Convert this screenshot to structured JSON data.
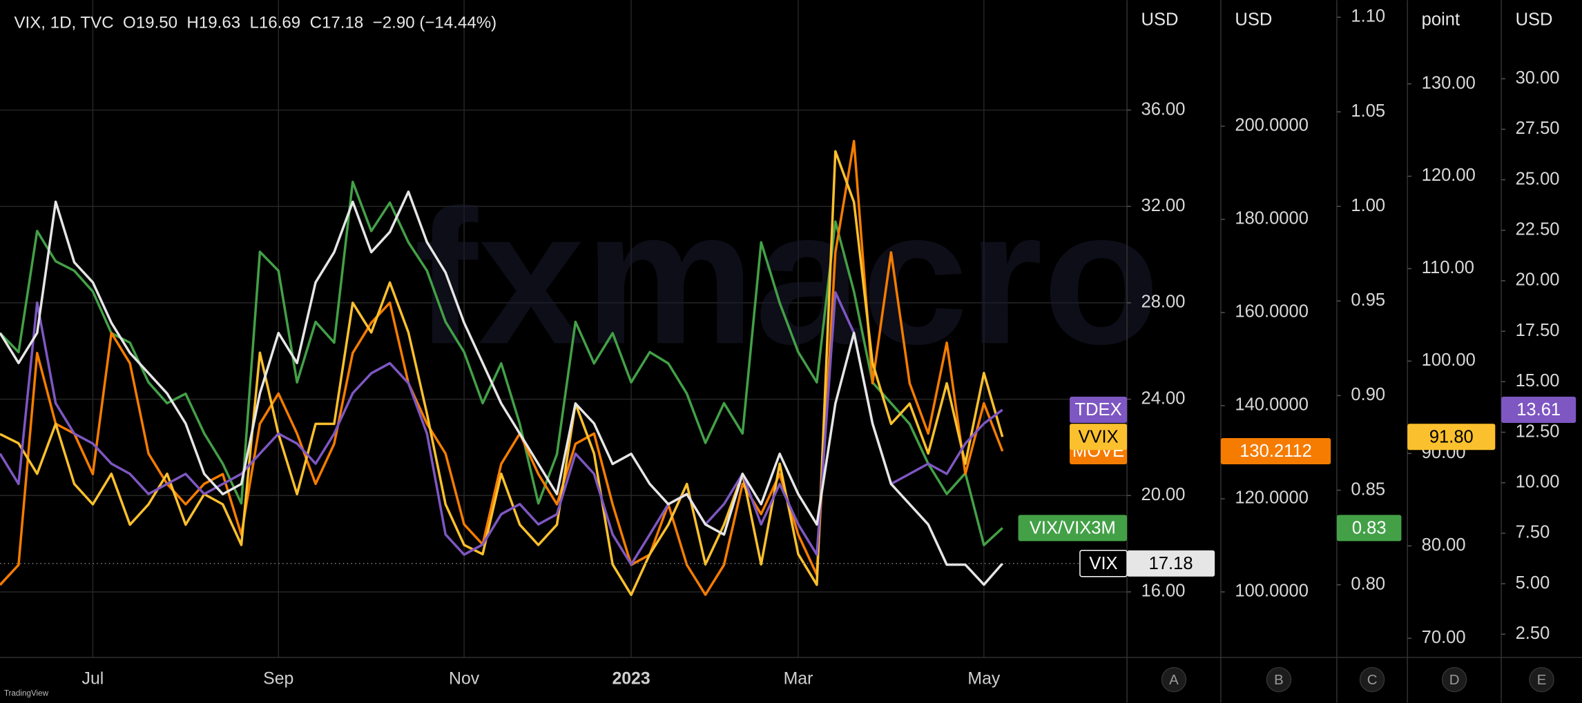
{
  "chart_data": {
    "type": "line",
    "title": "VIX, 1D, TVC  O19.50  H19.63  L16.69  C17.18  −2.90 (−14.44%)",
    "watermark": "fxmacro",
    "brand": "TradingView",
    "grid": true,
    "categories": [
      null,
      null,
      null,
      null,
      null,
      "Jul",
      null,
      null,
      null,
      null,
      null,
      null,
      null,
      null,
      null,
      "Sep",
      null,
      null,
      null,
      null,
      null,
      null,
      null,
      null,
      null,
      "Nov",
      null,
      null,
      null,
      null,
      null,
      null,
      null,
      null,
      "2023",
      null,
      null,
      null,
      null,
      null,
      null,
      null,
      null,
      "Mar",
      null,
      null,
      null,
      null,
      null,
      null,
      null,
      null,
      null,
      "May",
      null
    ],
    "axes": [
      {
        "id": "A",
        "unit": "USD",
        "ylim": [
          13.28,
          40.56
        ],
        "yticks": [
          {
            "value": 16,
            "label": "16.00"
          },
          {
            "value": 20,
            "label": "20.00"
          },
          {
            "value": 24,
            "label": "24.00"
          },
          {
            "value": 28,
            "label": "28.00"
          },
          {
            "value": 32,
            "label": "32.00"
          },
          {
            "value": 36,
            "label": "36.00"
          }
        ]
      },
      {
        "id": "B",
        "unit": "USD",
        "ylim": [
          85.93,
          227.06
        ],
        "yticks": [
          {
            "value": 100,
            "label": "100.0000"
          },
          {
            "value": 120,
            "label": "120.0000"
          },
          {
            "value": 140,
            "label": "140.0000"
          },
          {
            "value": 160,
            "label": "160.0000"
          },
          {
            "value": 180,
            "label": "180.0000"
          },
          {
            "value": 200,
            "label": "200.0000"
          }
        ]
      },
      {
        "id": "C",
        "ylim": [
          0.7616,
          1.109
        ],
        "yticks": [
          {
            "value": 0.8,
            "label": "0.80"
          },
          0.85,
          {
            "value": 0.9,
            "label": "0.90"
          },
          0.95,
          {
            "value": 1,
            "label": "1.00"
          },
          1.05,
          {
            "value": 1.1,
            "label": "1.10"
          }
        ]
      },
      {
        "id": "D",
        "unit": "point",
        "ylim": [
          67.93,
          139.05
        ],
        "yticks": [
          {
            "value": 70,
            "label": "70.00"
          },
          {
            "value": 80,
            "label": "80.00"
          },
          {
            "value": 90,
            "label": "90.00"
          },
          {
            "value": 100,
            "label": "100.00"
          },
          {
            "value": 110,
            "label": "110.00"
          },
          {
            "value": 120,
            "label": "120.00"
          },
          {
            "value": 130,
            "label": "130.00"
          }
        ]
      },
      {
        "id": "E",
        "unit": "USD",
        "ylim": [
          1.35,
          33.89
        ],
        "yticks": [
          {
            "value": 2.5,
            "label": "2.50"
          },
          {
            "value": 5,
            "label": "5.00"
          },
          {
            "value": 7.5,
            "label": "7.50"
          },
          {
            "value": 10,
            "label": "10.00"
          },
          {
            "value": 12.5,
            "label": "12.50"
          },
          {
            "value": 15,
            "label": "15.00"
          },
          {
            "value": 17.5,
            "label": "17.50"
          },
          {
            "value": 20,
            "label": "20.00"
          },
          {
            "value": 22.5,
            "label": "22.50"
          },
          {
            "value": 25,
            "label": "25.00"
          },
          {
            "value": 27.5,
            "label": "27.50"
          },
          {
            "value": 30,
            "label": "30.00"
          }
        ]
      }
    ],
    "series": [
      {
        "name": "VIX/VIX3M",
        "color": "#43a047",
        "axis": "C",
        "last_label": "0.83",
        "values": [
          0.933,
          0.923,
          0.987,
          0.971,
          0.966,
          0.955,
          0.933,
          0.928,
          0.907,
          0.896,
          0.901,
          0.88,
          0.864,
          0.843,
          0.976,
          0.966,
          0.907,
          0.939,
          0.928,
          1.013,
          0.987,
          1.002,
          0.981,
          0.966,
          0.939,
          0.923,
          0.896,
          0.917,
          0.885,
          0.843,
          0.869,
          0.939,
          0.917,
          0.933,
          0.907,
          0.923,
          0.917,
          0.901,
          0.875,
          0.896,
          0.88,
          0.981,
          0.949,
          0.923,
          0.907,
          0.992,
          0.955,
          0.907,
          0.896,
          0.885,
          0.864,
          0.848,
          0.859,
          0.821,
          0.83
        ]
      },
      {
        "name": "MOVE",
        "color": "#f57c00",
        "axis": "B",
        "last_label": "130.2112",
        "values": [
          101.5,
          105.8,
          151.3,
          136.1,
          134,
          125.3,
          155.6,
          149.1,
          129.7,
          123.2,
          118.8,
          123.2,
          125.3,
          112.3,
          136.1,
          142.6,
          134,
          123.2,
          131.8,
          151.3,
          157.8,
          162.1,
          144.8,
          136.1,
          129.7,
          114.5,
          110.2,
          127.5,
          134,
          125.3,
          118.8,
          131.8,
          134,
          118.8,
          105.8,
          108,
          118.8,
          105.8,
          99.4,
          105.8,
          123.2,
          116.7,
          125.3,
          112.3,
          103.7,
          172.9,
          196.8,
          144.8,
          172.9,
          144.8,
          134,
          153.5,
          125.3,
          140.5,
          130.2112
        ]
      },
      {
        "name": "VVIX",
        "color": "#fbc02d",
        "axis": "D",
        "last_label": "91.80",
        "values": [
          92.1,
          91.1,
          87.8,
          93.2,
          86.7,
          84.5,
          87.8,
          82.3,
          84.5,
          87.8,
          82.3,
          85.6,
          84.5,
          80.1,
          100.9,
          92.1,
          85.6,
          93.2,
          93.2,
          106.3,
          103.1,
          108.5,
          103.1,
          94.3,
          84.5,
          80.1,
          79.1,
          87.8,
          82.3,
          80.1,
          82.3,
          95.4,
          90,
          78,
          74.7,
          79.1,
          82.3,
          86.7,
          78,
          82.3,
          87.8,
          78,
          88.9,
          79.1,
          75.8,
          122.7,
          117.2,
          99.8,
          93.2,
          95.4,
          90,
          97.6,
          88.9,
          98.7,
          91.8
        ]
      },
      {
        "name": "TDEX",
        "color": "#7e57c2",
        "axis": "E",
        "last_label": "13.61",
        "values": [
          11.44,
          9.94,
          18.92,
          13.93,
          12.43,
          11.94,
          10.94,
          10.44,
          9.44,
          9.94,
          10.44,
          9.44,
          9.94,
          10.44,
          11.44,
          12.43,
          11.94,
          10.94,
          12.43,
          14.43,
          15.42,
          15.92,
          14.93,
          12.43,
          7.44,
          6.44,
          6.94,
          8.44,
          8.94,
          7.94,
          8.44,
          11.44,
          10.44,
          7.44,
          5.95,
          7.44,
          8.94,
          9.44,
          7.94,
          8.94,
          10.44,
          7.94,
          9.94,
          7.94,
          6.44,
          19.42,
          17.42,
          12.93,
          9.94,
          10.44,
          10.94,
          10.44,
          11.94,
          12.93,
          13.61
        ]
      },
      {
        "name": "VIX",
        "color": "#e6e6e6",
        "axis": "A",
        "last_label": "17.18",
        "values": [
          26.75,
          25.5,
          26.75,
          32.19,
          29.68,
          28.85,
          27.17,
          25.92,
          25.08,
          24.24,
          22.99,
          20.9,
          20.06,
          20.48,
          24.24,
          26.75,
          25.5,
          28.85,
          30.1,
          32.19,
          30.1,
          30.94,
          32.61,
          30.52,
          29.26,
          27.17,
          25.5,
          23.82,
          22.57,
          21.31,
          20.06,
          23.82,
          22.99,
          21.31,
          21.73,
          20.48,
          19.64,
          20.06,
          18.8,
          18.38,
          20.9,
          19.64,
          21.73,
          20.06,
          18.8,
          23.82,
          26.75,
          22.99,
          20.48,
          19.64,
          18.8,
          17.13,
          17.13,
          16.3,
          17.18
        ]
      }
    ]
  }
}
